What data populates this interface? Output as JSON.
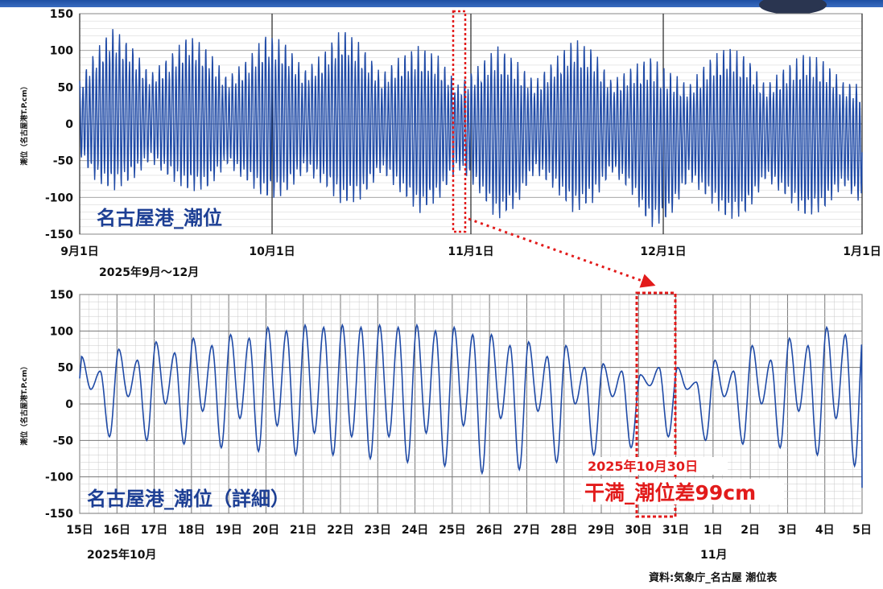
{
  "colors": {
    "line": "#1f4aa6",
    "accent": "#e21b1b",
    "label": "#1d3f94",
    "grid": "#9a9a9a",
    "band": "#1e4fa3"
  },
  "chart_data": [
    {
      "type": "line",
      "title": "名古屋港_潮位",
      "ylabel": "潮位（名古屋港T.P.cm）",
      "subtitle": "2025年9月～12月",
      "ylim": [
        -150,
        150
      ],
      "yticks": [
        150,
        100,
        50,
        0,
        -50,
        -100,
        -150
      ],
      "xticks": [
        "9月1日",
        "10月1日",
        "11月1日",
        "12月1日",
        "1月1日"
      ],
      "grid": true,
      "series": [
        {
          "x": [
            "2025-09-01",
            "2025-09-03",
            "2025-09-06",
            "2025-09-09",
            "2025-09-12",
            "2025-09-15",
            "2025-09-18",
            "2025-09-21",
            "2025-09-24",
            "2025-09-27",
            "2025-09-30",
            "2025-10-03",
            "2025-10-06",
            "2025-10-09",
            "2025-10-12",
            "2025-10-15",
            "2025-10-18",
            "2025-10-21",
            "2025-10-24",
            "2025-10-27",
            "2025-10-30",
            "2025-11-02",
            "2025-11-05",
            "2025-11-08",
            "2025-11-11",
            "2025-11-14",
            "2025-11-17",
            "2025-11-20",
            "2025-11-23",
            "2025-11-26",
            "2025-11-29",
            "2025-12-02",
            "2025-12-05",
            "2025-12-08",
            "2025-12-11",
            "2025-12-14",
            "2025-12-17",
            "2025-12-20",
            "2025-12-23",
            "2025-12-26",
            "2025-12-29",
            "2026-01-01"
          ],
          "high": [
            60,
            95,
            135,
            110,
            70,
            95,
            125,
            105,
            65,
            90,
            125,
            115,
            75,
            100,
            135,
            110,
            70,
            95,
            110,
            95,
            55,
            80,
            110,
            90,
            60,
            90,
            120,
            105,
            60,
            80,
            95,
            75,
            55,
            90,
            110,
            95,
            55,
            80,
            100,
            90,
            60,
            55
          ],
          "low": [
            -45,
            -80,
            -100,
            -85,
            -55,
            -80,
            -100,
            -95,
            -60,
            -85,
            -110,
            -105,
            -70,
            -90,
            -120,
            -110,
            -70,
            -100,
            -130,
            -110,
            -65,
            -95,
            -140,
            -120,
            -70,
            -95,
            -130,
            -115,
            -70,
            -100,
            -150,
            -135,
            -80,
            -110,
            -140,
            -130,
            -80,
            -105,
            -135,
            -125,
            -90,
            -115
          ]
        }
      ]
    },
    {
      "type": "line",
      "title": "名古屋港_潮位（詳細）",
      "ylabel": "潮位（名古屋港T.P.cm）",
      "month_label_oct": "2025年10月",
      "month_label_nov": "11月",
      "ylim": [
        -150,
        150
      ],
      "yticks": [
        150,
        100,
        50,
        0,
        -50,
        -100,
        -150
      ],
      "xticks": [
        "15日",
        "16日",
        "17日",
        "18日",
        "19日",
        "20日",
        "21日",
        "22日",
        "23日",
        "24日",
        "25日",
        "26日",
        "27日",
        "28日",
        "29日",
        "30日",
        "31日",
        "1日",
        "2日",
        "3日",
        "4日",
        "5日"
      ],
      "grid": true,
      "series": [
        {
          "x": [
            "15日",
            "16日",
            "17日",
            "18日",
            "19日",
            "20日",
            "21日",
            "22日",
            "23日",
            "24日",
            "25日",
            "26日",
            "27日",
            "28日",
            "29日",
            "30日",
            "31日",
            "1日",
            "2日",
            "3日",
            "4日",
            "5日"
          ],
          "high_a": [
            65,
            75,
            85,
            90,
            95,
            105,
            108,
            108,
            108,
            108,
            105,
            95,
            85,
            80,
            55,
            40,
            50,
            60,
            80,
            90,
            105,
            110
          ],
          "high_b": [
            45,
            60,
            70,
            80,
            90,
            100,
            105,
            105,
            105,
            100,
            95,
            80,
            65,
            50,
            45,
            50,
            30,
            45,
            60,
            80,
            95,
            100
          ],
          "low_a": [
            -45,
            -50,
            -55,
            -60,
            -65,
            -70,
            -70,
            -75,
            -80,
            -85,
            -95,
            -90,
            -80,
            -70,
            -60,
            -45,
            -50,
            -55,
            -60,
            -70,
            -85,
            -100
          ],
          "low_b": [
            20,
            10,
            0,
            -10,
            -20,
            -30,
            -40,
            -45,
            -45,
            -40,
            -30,
            -20,
            -10,
            0,
            10,
            25,
            20,
            10,
            0,
            -10,
            -20,
            -30
          ]
        }
      ]
    }
  ],
  "annotation": {
    "date": "2025年10月30日",
    "text": "干満_潮位差99cm"
  },
  "source_note": "資料:気象庁_名古屋 潮位表"
}
